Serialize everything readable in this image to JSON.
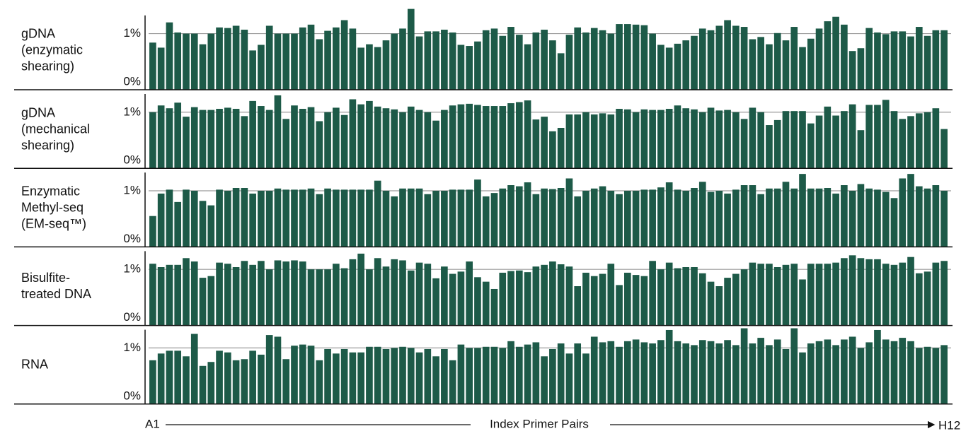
{
  "chart_data": [
    {
      "type": "bar",
      "title": "gDNA\n(enzymatic\nshearing)",
      "color": "#1d5a48",
      "grid": true,
      "ylim": [
        0,
        1.4
      ],
      "yticks": [
        {
          "value": 0,
          "label": "0%"
        },
        {
          "value": 1,
          "label": "1%"
        }
      ],
      "values": [
        0.84,
        0.75,
        1.2,
        1.02,
        1.0,
        1.0,
        0.81,
        1.0,
        1.11,
        1.1,
        1.14,
        1.07,
        0.7,
        0.8,
        1.14,
        1.0,
        1.0,
        1.0,
        1.11,
        1.16,
        0.9,
        1.05,
        1.11,
        1.24,
        1.09,
        0.75,
        0.81,
        0.76,
        0.88,
        1.0,
        1.09,
        1.44,
        0.95,
        1.04,
        1.04,
        1.07,
        1.02,
        0.8,
        0.78,
        0.86,
        1.06,
        1.09,
        0.96,
        1.12,
        0.98,
        0.81,
        1.02,
        1.07,
        0.88,
        0.65,
        0.98,
        1.11,
        1.02,
        1.1,
        1.06,
        1.0,
        1.17,
        1.17,
        1.16,
        1.15,
        1.0,
        0.8,
        0.75,
        0.82,
        0.88,
        0.96,
        1.09,
        1.06,
        1.14,
        1.24,
        1.14,
        1.12,
        0.9,
        0.94,
        0.81,
        1.01,
        0.88,
        1.12,
        0.76,
        0.91,
        1.09,
        1.22,
        1.3,
        1.16,
        0.69,
        0.74,
        1.1,
        1.02,
        0.99,
        1.04,
        1.04,
        0.95,
        1.12,
        0.96,
        1.06,
        1.06
      ]
    },
    {
      "type": "bar",
      "title": "gDNA\n(mechanical\nshearing)",
      "color": "#1d5a48",
      "grid": true,
      "ylim": [
        0,
        1.4
      ],
      "yticks": [
        {
          "value": 0,
          "label": "0%"
        },
        {
          "value": 1,
          "label": "1%"
        }
      ],
      "values": [
        1.0,
        1.12,
        1.07,
        1.17,
        0.92,
        1.09,
        1.04,
        1.04,
        1.06,
        1.08,
        1.06,
        0.93,
        1.2,
        1.11,
        1.04,
        1.3,
        0.88,
        1.12,
        1.06,
        1.09,
        0.84,
        1.0,
        1.08,
        0.95,
        1.23,
        1.14,
        1.2,
        1.1,
        1.07,
        1.05,
        1.0,
        1.1,
        1.04,
        1.0,
        0.85,
        1.04,
        1.12,
        1.14,
        1.15,
        1.13,
        1.11,
        1.11,
        1.11,
        1.16,
        1.18,
        1.21,
        0.87,
        0.92,
        0.66,
        0.72,
        0.96,
        0.96,
        1.0,
        0.96,
        0.98,
        0.96,
        1.06,
        1.05,
        1.0,
        1.05,
        1.04,
        1.04,
        1.06,
        1.12,
        1.07,
        1.05,
        1.0,
        1.08,
        1.03,
        1.04,
        1.0,
        0.88,
        1.08,
        1.0,
        0.77,
        0.86,
        1.02,
        1.02,
        1.02,
        0.8,
        0.94,
        1.1,
        0.94,
        1.02,
        1.14,
        0.68,
        1.13,
        1.13,
        1.22,
        1.02,
        0.88,
        0.93,
        0.98,
        1.0,
        1.07,
        0.7
      ]
    },
    {
      "type": "bar",
      "title": "Enzymatic\nMethyl-seq\n(EM-seq™)",
      "color": "#1d5a48",
      "grid": true,
      "ylim": [
        0,
        1.4
      ],
      "yticks": [
        {
          "value": 0,
          "label": "0%"
        },
        {
          "value": 1,
          "label": "1%"
        }
      ],
      "values": [
        0.55,
        0.95,
        1.02,
        0.8,
        1.02,
        1.0,
        0.82,
        0.74,
        1.02,
        1.0,
        1.05,
        1.05,
        0.95,
        1.0,
        1.0,
        1.04,
        1.02,
        1.02,
        1.02,
        1.04,
        0.94,
        1.04,
        1.02,
        1.02,
        1.02,
        1.02,
        1.02,
        1.18,
        1.0,
        0.9,
        1.04,
        1.04,
        1.04,
        0.94,
        1.0,
        1.0,
        1.02,
        1.02,
        1.02,
        1.2,
        0.9,
        0.96,
        1.04,
        1.1,
        1.08,
        1.15,
        0.94,
        1.04,
        1.03,
        1.05,
        1.22,
        0.9,
        1.0,
        1.04,
        1.08,
        1.0,
        0.94,
        1.0,
        1.0,
        1.02,
        1.02,
        1.06,
        1.15,
        1.02,
        1.0,
        1.05,
        1.16,
        0.98,
        1.0,
        0.95,
        1.02,
        1.1,
        1.1,
        0.94,
        1.04,
        1.04,
        1.16,
        1.04,
        1.3,
        1.04,
        1.04,
        1.05,
        0.95,
        1.1,
        1.0,
        1.12,
        1.04,
        1.02,
        0.98,
        0.87,
        1.22,
        1.3,
        1.08,
        1.04,
        1.1,
        1.0
      ]
    },
    {
      "type": "bar",
      "title": "Bisulfite-\ntreated DNA",
      "color": "#1d5a48",
      "grid": true,
      "ylim": [
        0,
        1.4
      ],
      "yticks": [
        {
          "value": 0,
          "label": "0%"
        },
        {
          "value": 1,
          "label": "1%"
        }
      ],
      "values": [
        1.1,
        1.04,
        1.08,
        1.08,
        1.2,
        1.14,
        0.85,
        0.88,
        1.12,
        1.1,
        1.04,
        1.15,
        1.08,
        1.15,
        1.0,
        1.16,
        1.14,
        1.16,
        1.14,
        1.0,
        1.0,
        1.0,
        1.1,
        1.02,
        1.18,
        1.28,
        1.0,
        1.2,
        1.05,
        1.18,
        1.16,
        0.98,
        1.12,
        1.1,
        0.84,
        1.05,
        0.92,
        0.96,
        1.14,
        0.86,
        0.78,
        0.65,
        0.94,
        0.97,
        0.98,
        0.95,
        1.05,
        1.08,
        1.14,
        1.09,
        1.05,
        0.7,
        0.94,
        0.88,
        0.92,
        1.1,
        0.72,
        0.94,
        0.9,
        0.88,
        1.15,
        1.0,
        1.12,
        1.02,
        1.04,
        1.04,
        0.93,
        0.78,
        0.7,
        0.85,
        0.92,
        1.0,
        1.12,
        1.1,
        1.1,
        1.04,
        1.08,
        1.1,
        0.82,
        1.1,
        1.1,
        1.1,
        1.12,
        1.2,
        1.25,
        1.2,
        1.18,
        1.18,
        1.1,
        1.08,
        1.12,
        1.22,
        0.93,
        0.96,
        1.12,
        1.15
      ]
    },
    {
      "type": "bar",
      "title": "RNA",
      "color": "#1d5a48",
      "grid": true,
      "ylim": [
        0,
        1.4
      ],
      "yticks": [
        {
          "value": 0,
          "label": "0%"
        },
        {
          "value": 1,
          "label": "1%"
        }
      ],
      "values": [
        0.78,
        0.9,
        0.95,
        0.95,
        0.85,
        1.25,
        0.68,
        0.75,
        0.95,
        0.92,
        0.78,
        0.8,
        0.95,
        0.88,
        1.23,
        1.2,
        0.8,
        1.04,
        1.06,
        1.04,
        0.78,
        0.98,
        0.9,
        0.98,
        0.92,
        0.92,
        1.02,
        1.02,
        0.98,
        1.0,
        1.02,
        1.0,
        0.92,
        0.98,
        0.85,
        0.98,
        0.78,
        1.06,
        1.0,
        1.0,
        1.02,
        1.02,
        1.0,
        1.12,
        1.02,
        1.06,
        1.1,
        0.85,
        0.98,
        1.08,
        0.9,
        1.08,
        0.9,
        1.2,
        1.1,
        1.12,
        1.02,
        1.12,
        1.15,
        1.1,
        1.08,
        1.14,
        1.32,
        1.12,
        1.08,
        1.05,
        1.14,
        1.12,
        1.08,
        1.14,
        1.05,
        1.35,
        1.08,
        1.18,
        1.05,
        1.15,
        0.98,
        1.35,
        0.92,
        1.08,
        1.12,
        1.15,
        1.05,
        1.15,
        1.2,
        1.0,
        1.1,
        1.32,
        1.15,
        1.12,
        1.18,
        1.12,
        1.0,
        1.02,
        1.0,
        1.05
      ],
      "x_label": "Index Primer Pairs",
      "categories": [
        "A1",
        null,
        null,
        null,
        null,
        null,
        null,
        null,
        null,
        null,
        null,
        null,
        null,
        null,
        null,
        null,
        null,
        null,
        null,
        null,
        null,
        null,
        null,
        null,
        null,
        null,
        null,
        null,
        null,
        null,
        null,
        null,
        null,
        null,
        null,
        null,
        null,
        null,
        null,
        null,
        null,
        null,
        null,
        null,
        null,
        null,
        null,
        null,
        null,
        null,
        null,
        null,
        null,
        null,
        null,
        null,
        null,
        null,
        null,
        null,
        null,
        null,
        null,
        null,
        null,
        null,
        null,
        null,
        null,
        null,
        null,
        null,
        null,
        null,
        null,
        null,
        null,
        null,
        null,
        null,
        null,
        null,
        null,
        null,
        null,
        null,
        null,
        null,
        null,
        null,
        null,
        null,
        null,
        null,
        null,
        "H12"
      ]
    }
  ]
}
